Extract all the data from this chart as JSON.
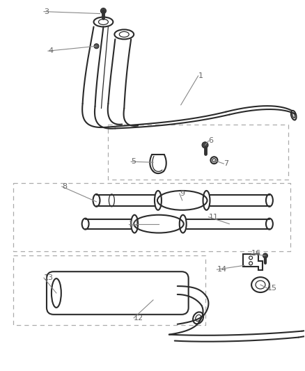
{
  "background_color": "#ffffff",
  "line_color": "#2a2a2a",
  "label_color": "#666666",
  "leader_color": "#888888",
  "figsize": [
    4.38,
    5.33
  ],
  "dpi": 100
}
